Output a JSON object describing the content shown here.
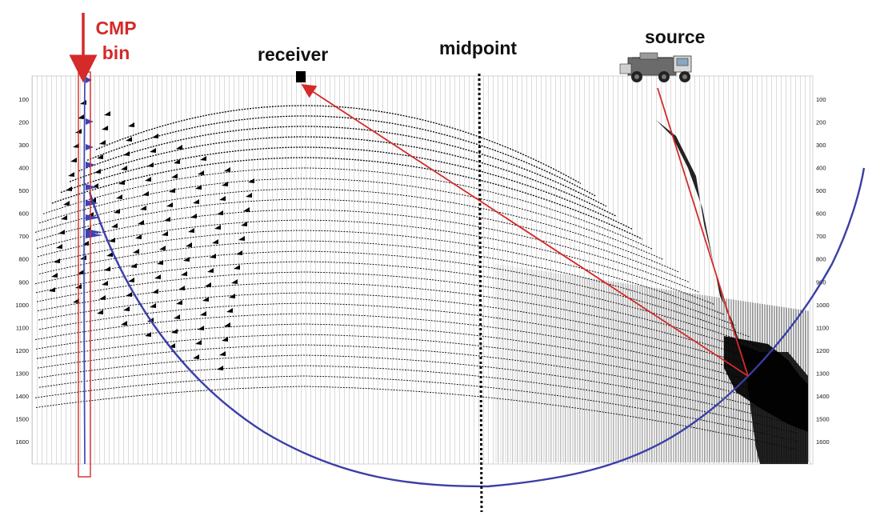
{
  "labels": {
    "cmp_line1": "CMP",
    "cmp_line2": "bin",
    "receiver": "receiver",
    "midpoint": "midpoint",
    "source": "source"
  },
  "axis": {
    "ticks": [
      "100",
      "200",
      "300",
      "400",
      "500",
      "600",
      "700",
      "800",
      "900",
      "1000",
      "1100",
      "1200",
      "1300",
      "1400",
      "1500",
      "1600"
    ],
    "tick_values": [
      100,
      200,
      300,
      400,
      500,
      600,
      700,
      800,
      900,
      1000,
      1100,
      1200,
      1300,
      1400,
      1500,
      1600
    ]
  },
  "colors": {
    "annotation_red": "#d42a2a",
    "ellipse_blue": "#3b3fa5",
    "wavelet_blue": "#3a44b8",
    "trace_black": "#000000",
    "grid_gray": "#b8b8b8"
  },
  "icons": {
    "source": "vibrator-truck-icon",
    "receiver": "receiver-square-icon",
    "arrow": "down-arrow-icon"
  }
}
